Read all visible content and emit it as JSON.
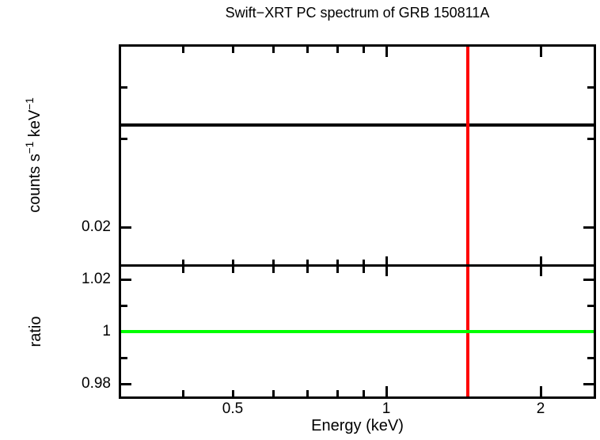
{
  "title": "Swift−XRT PC spectrum of GRB 150811A",
  "colors": {
    "frame": "#000000",
    "model_line": "#000000",
    "data_error_bar": "#ff0000",
    "unity_reference": "#00ff00",
    "background": "#ffffff"
  },
  "axes": {
    "x": {
      "label": "Energy (keV)",
      "scale": "log",
      "min": 0.3,
      "max": 2.565,
      "ticks": [
        {
          "value": 0.4
        },
        {
          "value": 0.5,
          "label": "0.5"
        },
        {
          "value": 0.6
        },
        {
          "value": 0.7
        },
        {
          "value": 0.8
        },
        {
          "value": 0.9
        },
        {
          "value": 1,
          "label": "1",
          "major": true
        },
        {
          "value": 2,
          "label": "2",
          "major": true
        }
      ]
    },
    "y_top": {
      "label": "counts s⁻¹ keV⁻¹",
      "label_parts": [
        {
          "text": "counts s"
        },
        {
          "text": "−1",
          "sup": true
        },
        {
          "text": " keV"
        },
        {
          "text": "−1",
          "sup": true
        }
      ],
      "scale": "log",
      "min": 0.0149,
      "max": 0.0837,
      "ticks": [
        {
          "value": 0.02,
          "label": "0.02",
          "major": true
        },
        {
          "value": 0.04
        },
        {
          "value": 0.06
        }
      ]
    },
    "y_bottom": {
      "label": "ratio",
      "scale": "linear",
      "min": 0.9742,
      "max": 1.0255,
      "ticks": [
        {
          "value": 0.98,
          "label": "0.98",
          "major": true
        },
        {
          "value": 0.99
        },
        {
          "value": 1,
          "label": "1",
          "major": true
        },
        {
          "value": 1.01
        },
        {
          "value": 1.02,
          "label": "1.02",
          "major": true
        }
      ]
    }
  },
  "chart_data": [
    {
      "type": "line",
      "panel": "spectrum",
      "title": "Swift−XRT PC spectrum of GRB 150811A",
      "xlabel": "Energy (keV)",
      "ylabel": "counts s⁻¹ keV⁻¹",
      "x_scale": "log",
      "y_scale": "log",
      "xlim": [
        0.3,
        2.565
      ],
      "ylim": [
        0.0149,
        0.0837
      ],
      "x_ticks_labeled": [
        0.5,
        1,
        2
      ],
      "y_ticks_labeled": [
        0.02
      ],
      "grid": false,
      "legend": false,
      "series": [
        {
          "name": "model",
          "type": "hline",
          "color": "#000000",
          "y": 0.0445,
          "x_range": [
            0.3,
            2.565
          ],
          "description": "single-bin model level spanning full energy range"
        },
        {
          "name": "data-error-bar",
          "type": "vline",
          "color": "#ff0000",
          "x": 1.44,
          "y_range": [
            0.0149,
            0.0837
          ],
          "description": "data point error bar spanning full panel height"
        }
      ]
    },
    {
      "type": "line",
      "panel": "ratio",
      "xlabel": "Energy (keV)",
      "ylabel": "ratio",
      "x_scale": "log",
      "y_scale": "linear",
      "xlim": [
        0.3,
        2.565
      ],
      "ylim": [
        0.9742,
        1.0255
      ],
      "x_ticks_labeled": [
        0.5,
        1,
        2
      ],
      "y_ticks_labeled": [
        0.98,
        1,
        1.02
      ],
      "grid": false,
      "legend": false,
      "series": [
        {
          "name": "data-error-bar",
          "type": "vline",
          "color": "#ff0000",
          "x": 1.44,
          "y_range": [
            0.9742,
            1.0255
          ],
          "description": "data point error bar spanning full panel height"
        },
        {
          "name": "unity-reference",
          "type": "hline",
          "color": "#00ff00",
          "y": 1.0,
          "x_range": [
            0.3,
            2.565
          ],
          "description": "ratio = 1 reference line"
        }
      ]
    }
  ]
}
